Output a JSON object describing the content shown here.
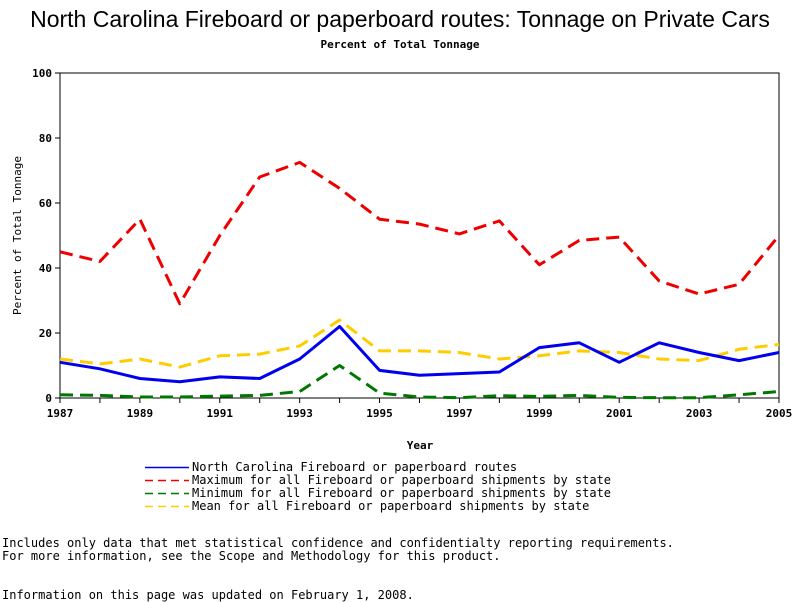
{
  "chart_data": {
    "type": "line",
    "title": "North Carolina Fireboard or paperboard routes: Tonnage on Private Cars",
    "subtitle": "Percent of Total Tonnage",
    "xlabel": "Year",
    "ylabel": "Percent of Total Tonnage",
    "xlim": [
      1987,
      2005
    ],
    "ylim": [
      0,
      100
    ],
    "x_ticks": [
      "1987",
      "1989",
      "1991",
      "1993",
      "1995",
      "1997",
      "1999",
      "2001",
      "2003",
      "2005"
    ],
    "y_ticks": [
      "0",
      "20",
      "40",
      "60",
      "80",
      "100"
    ],
    "x": [
      1987,
      1988,
      1989,
      1990,
      1991,
      1992,
      1993,
      1994,
      1995,
      1996,
      1997,
      1998,
      1999,
      2000,
      2001,
      2002,
      2003,
      2004,
      2005
    ],
    "series": [
      {
        "name": "North Carolina Fireboard or paperboard routes",
        "color": "#0000ee",
        "style": "solid",
        "values": [
          11,
          9,
          6,
          5,
          6.5,
          6,
          12,
          22,
          8.5,
          7,
          7.5,
          8,
          15.5,
          17,
          11,
          17,
          14,
          11.5,
          14
        ]
      },
      {
        "name": "Maximum for all Fireboard or paperboard shipments by state",
        "color": "#ee0000",
        "style": "dashed",
        "values": [
          45,
          42,
          55,
          29,
          50,
          68,
          72.5,
          64.5,
          55,
          53.5,
          50.5,
          54.5,
          41,
          48.5,
          49.5,
          36,
          32,
          35,
          50
        ]
      },
      {
        "name": "Minimum for all Fireboard or paperboard shipments by state",
        "color": "#007700",
        "style": "dashed",
        "values": [
          1,
          0.8,
          0.3,
          0.3,
          0.6,
          0.8,
          2,
          10,
          1.5,
          0.3,
          0.1,
          0.7,
          0.5,
          0.8,
          0.2,
          0.1,
          0.1,
          1,
          2
        ]
      },
      {
        "name": "Mean for all Fireboard or paperboard shipments by state",
        "color": "#ffcc00",
        "style": "dashed",
        "values": [
          12,
          10.5,
          12,
          9.5,
          13,
          13.5,
          16,
          24,
          14.5,
          14.5,
          14,
          12,
          13,
          14.5,
          14,
          12,
          11.5,
          15,
          16.5
        ]
      }
    ]
  },
  "notes": {
    "line1": "Includes only data that met statistical confidence and confidentialty reporting requirements.",
    "line2": "For more information, see the Scope and Methodology for this product.",
    "updated": "Information on this page was updated on February 1, 2008."
  }
}
